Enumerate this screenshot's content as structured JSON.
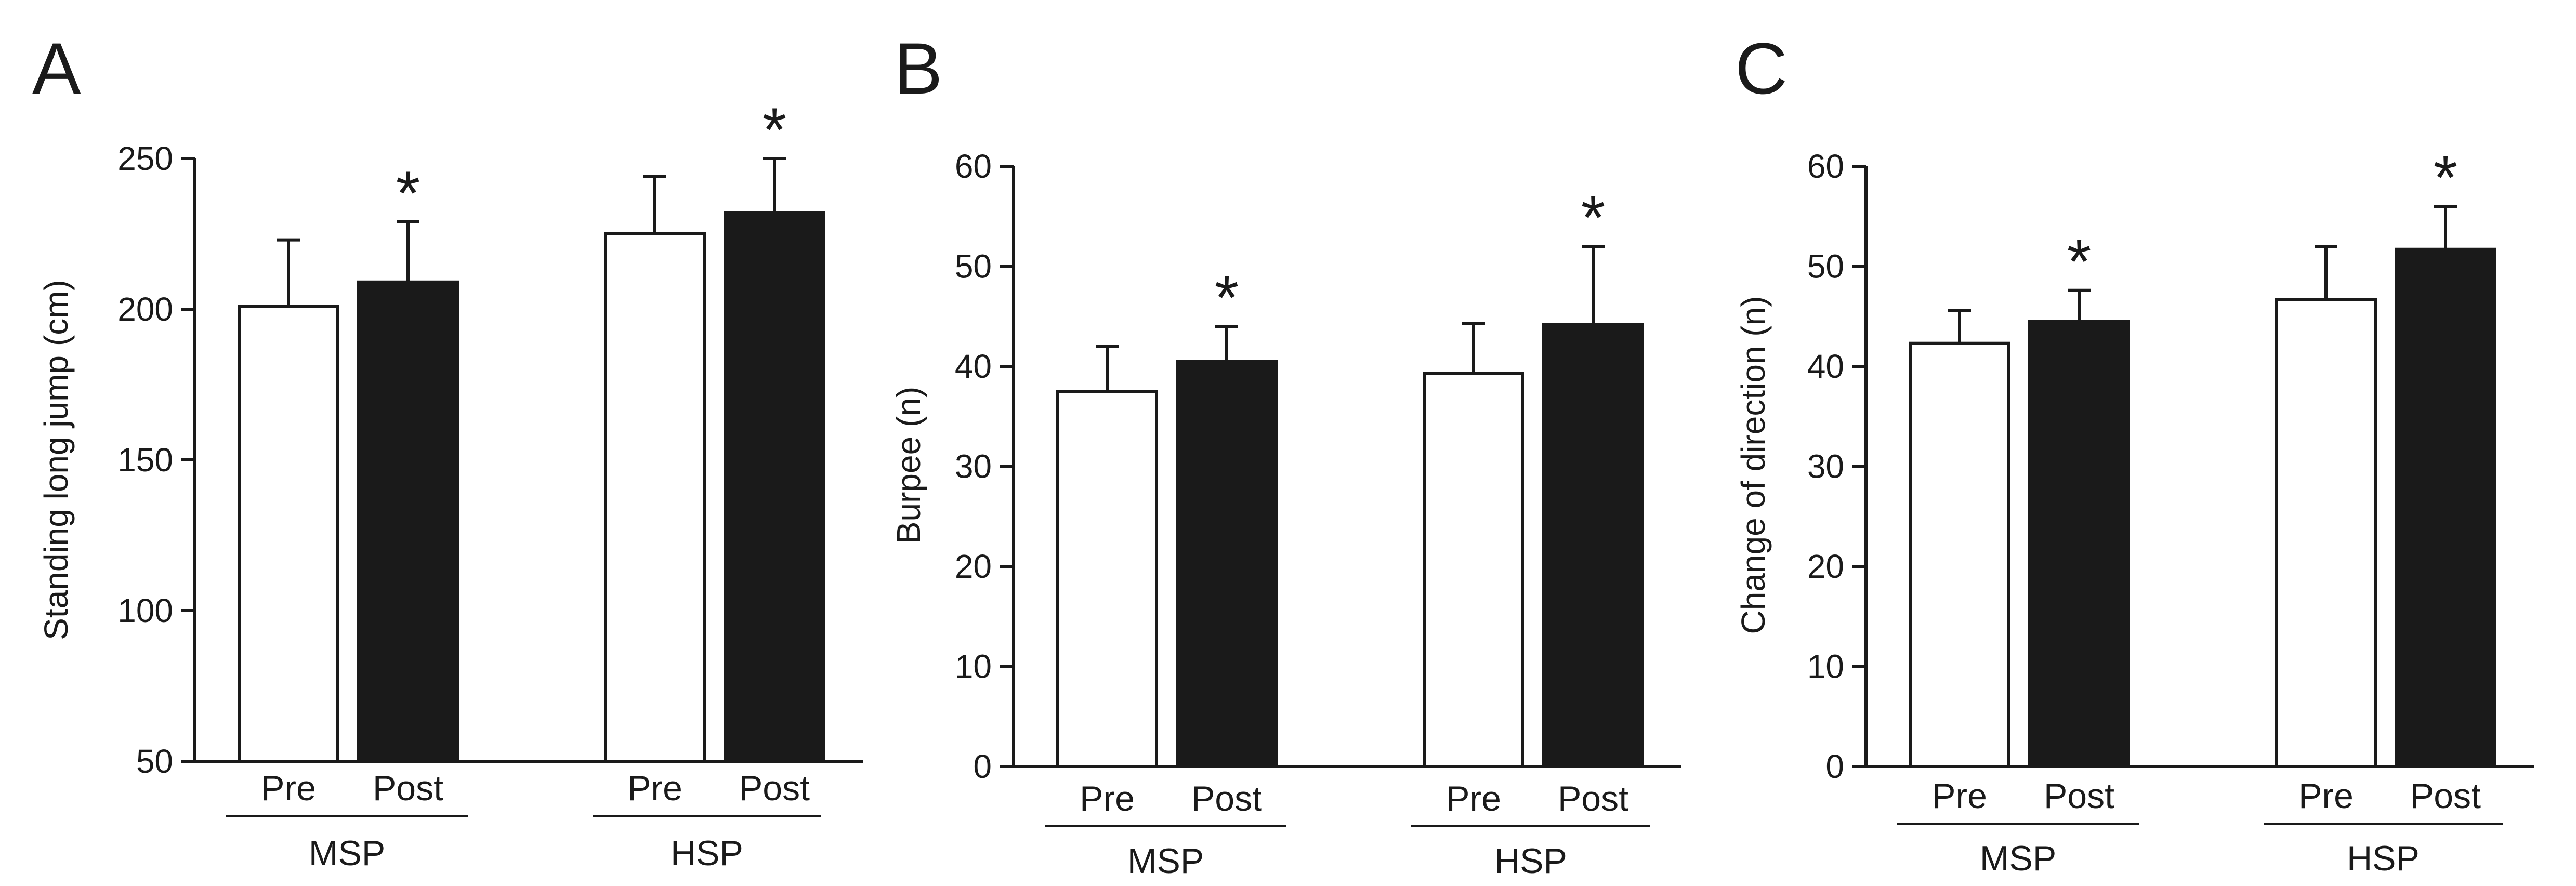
{
  "chart_data": [
    {
      "type": "bar",
      "panel": "A",
      "ylabel": "Standing long jump (cm)",
      "ylim": [
        50,
        250
      ],
      "yticks": [
        50,
        100,
        150,
        200,
        250
      ],
      "grid": false,
      "groups": [
        {
          "name": "MSP",
          "bars": [
            {
              "label": "Pre",
              "value": 201,
              "error": 22,
              "fill": "#ffffff",
              "annotation": ""
            },
            {
              "label": "Post",
              "value": 209,
              "error": 20,
              "fill": "#1a1a1a",
              "annotation": "*"
            }
          ]
        },
        {
          "name": "HSP",
          "bars": [
            {
              "label": "Pre",
              "value": 225,
              "error": 19,
              "fill": "#ffffff",
              "annotation": ""
            },
            {
              "label": "Post",
              "value": 232,
              "error": 18,
              "fill": "#1a1a1a",
              "annotation": "*"
            }
          ]
        }
      ]
    },
    {
      "type": "bar",
      "panel": "B",
      "ylabel": "Burpee (n)",
      "ylim": [
        0,
        60
      ],
      "yticks": [
        0,
        10,
        20,
        30,
        40,
        50,
        60
      ],
      "grid": false,
      "groups": [
        {
          "name": "MSP",
          "bars": [
            {
              "label": "Pre",
              "value": 37.5,
              "error": 4.5,
              "fill": "#ffffff",
              "annotation": ""
            },
            {
              "label": "Post",
              "value": 40.5,
              "error": 3.5,
              "fill": "#1a1a1a",
              "annotation": "*"
            }
          ]
        },
        {
          "name": "HSP",
          "bars": [
            {
              "label": "Pre",
              "value": 39.3,
              "error": 5.0,
              "fill": "#ffffff",
              "annotation": ""
            },
            {
              "label": "Post",
              "value": 44.2,
              "error": 7.8,
              "fill": "#1a1a1a",
              "annotation": "*"
            }
          ]
        }
      ]
    },
    {
      "type": "bar",
      "panel": "C",
      "ylabel": "Change of direction (n)",
      "ylim": [
        0,
        60
      ],
      "yticks": [
        0,
        10,
        20,
        30,
        40,
        50,
        60
      ],
      "grid": false,
      "groups": [
        {
          "name": "MSP",
          "bars": [
            {
              "label": "Pre",
              "value": 42.3,
              "error": 3.3,
              "fill": "#ffffff",
              "annotation": ""
            },
            {
              "label": "Post",
              "value": 44.5,
              "error": 3.1,
              "fill": "#1a1a1a",
              "annotation": "*"
            }
          ]
        },
        {
          "name": "HSP",
          "bars": [
            {
              "label": "Pre",
              "value": 46.7,
              "error": 5.3,
              "fill": "#ffffff",
              "annotation": ""
            },
            {
              "label": "Post",
              "value": 51.7,
              "error": 4.3,
              "fill": "#1a1a1a",
              "annotation": "*"
            }
          ]
        }
      ]
    }
  ]
}
